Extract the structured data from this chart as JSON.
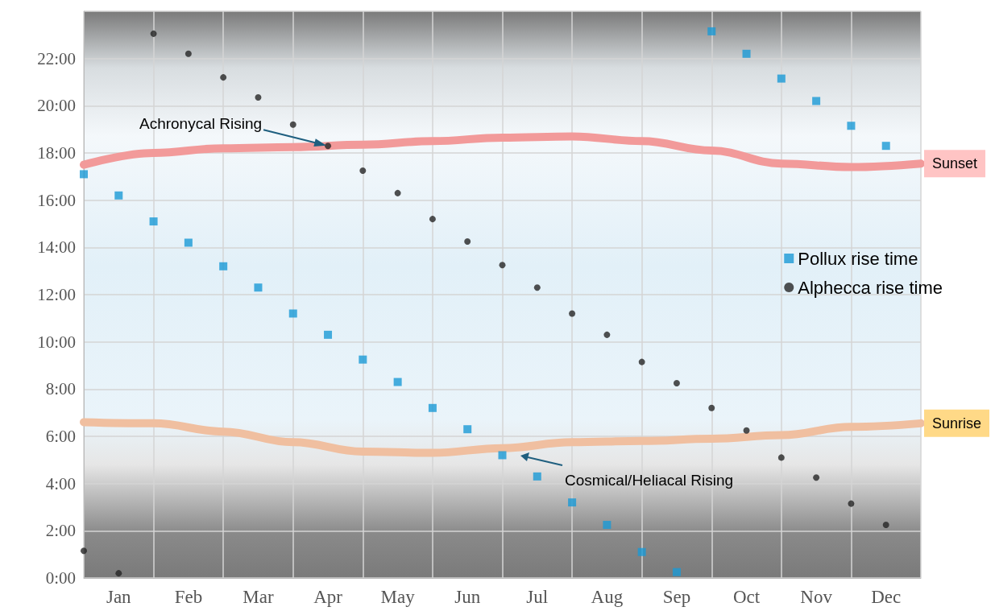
{
  "chart_data": {
    "type": "scatter",
    "categories": [
      null,
      "Jan",
      null,
      "Feb",
      null,
      "Mar",
      null,
      "Apr",
      null,
      "May",
      null,
      "Jun",
      null,
      "Jul",
      null,
      "Aug",
      null,
      "Sep",
      null,
      "Oct",
      null,
      "Nov",
      null,
      "Dec",
      null
    ],
    "series": [
      {
        "name": "Pollux rise time",
        "color": "#1a9ad6",
        "marker": "square",
        "values": [
          17.1,
          16.2,
          15.1,
          14.2,
          13.2,
          12.3,
          11.2,
          10.3,
          9.25,
          8.3,
          7.2,
          6.3,
          5.2,
          4.3,
          3.2,
          2.25,
          1.1,
          0.25,
          23.15,
          22.2,
          21.15,
          20.2,
          19.15,
          18.3,
          null
        ]
      },
      {
        "name": "Alphecca rise time",
        "color": "#262626",
        "marker": "circle",
        "values": [
          1.15,
          0.2,
          23.05,
          22.2,
          21.2,
          20.35,
          19.2,
          18.3,
          17.25,
          16.3,
          15.2,
          14.25,
          13.25,
          12.3,
          11.2,
          10.3,
          9.15,
          8.25,
          7.2,
          6.25,
          5.1,
          4.25,
          3.15,
          2.25,
          null
        ]
      },
      {
        "name": "Sunset",
        "type": "line",
        "color": "#f29a9a",
        "marker": "none",
        "values": [
          17.5,
          null,
          18.0,
          null,
          18.2,
          null,
          18.25,
          null,
          18.35,
          null,
          18.5,
          null,
          18.65,
          null,
          18.7,
          null,
          18.5,
          null,
          18.1,
          null,
          17.55,
          null,
          17.4,
          null,
          17.55
        ]
      },
      {
        "name": "Sunrise",
        "type": "line",
        "color": "#f0bfa0",
        "marker": "none",
        "values": [
          6.6,
          null,
          6.55,
          null,
          6.2,
          null,
          5.75,
          null,
          5.35,
          null,
          5.3,
          null,
          5.5,
          null,
          5.75,
          null,
          5.8,
          null,
          5.9,
          null,
          6.05,
          null,
          6.4,
          null,
          6.55
        ]
      }
    ],
    "annotations": [
      {
        "text": "Achronycal Rising",
        "x": "Apr",
        "y": 18.3
      },
      "Cosmical/Heliacal Rising"
    ],
    "ylim": [
      0,
      24
    ],
    "yticks": [
      {
        "value": 0,
        "label": "0:00"
      },
      {
        "value": 2,
        "label": "2:00"
      },
      {
        "value": 4,
        "label": "4:00"
      },
      {
        "value": 6,
        "label": "6:00"
      },
      {
        "value": 8,
        "label": "8:00"
      },
      {
        "value": 10,
        "label": "10:00"
      },
      {
        "value": 12,
        "label": "12:00"
      },
      {
        "value": 14,
        "label": "14:00"
      },
      {
        "value": 16,
        "label": "16:00"
      },
      {
        "value": 18,
        "label": "18:00"
      },
      {
        "value": 20,
        "label": "20:00"
      },
      {
        "value": 22,
        "label": "22:00"
      },
      {
        "value": 24,
        "label": null
      }
    ],
    "grid": true,
    "legend": "right"
  }
}
